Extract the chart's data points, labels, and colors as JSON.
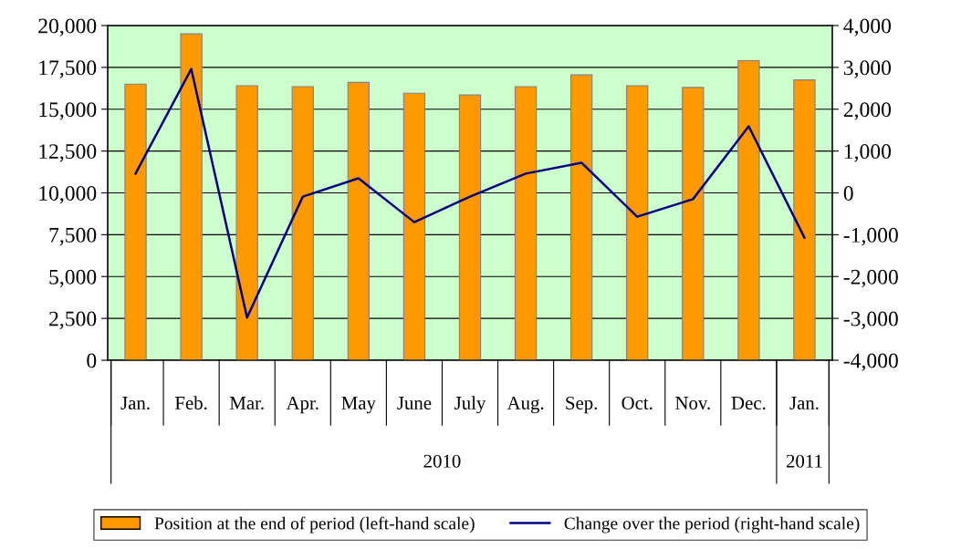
{
  "chart_data": {
    "type": "bar",
    "categories": [
      "Jan.",
      "Feb.",
      "Mar.",
      "Apr.",
      "May",
      "June",
      "July",
      "Aug.",
      "Sep.",
      "Oct.",
      "Nov.",
      "Dec.",
      "Jan."
    ],
    "series": [
      {
        "name": "Position at the end of period (left-hand scale)",
        "color": "#ff9900",
        "values": [
          16500,
          19500,
          16400,
          16350,
          16600,
          15950,
          15850,
          16350,
          17050,
          16400,
          16300,
          17900,
          16750
        ]
      },
      {
        "name": "Change over the period (right-hand scale)",
        "type": "line",
        "axis": "y2",
        "color": "#000080",
        "values": [
          460,
          2960,
          -2980,
          -90,
          350,
          -700,
          -90,
          460,
          720,
          -570,
          -150,
          1590,
          -1070
        ]
      }
    ],
    "ylim": [
      0,
      20000
    ],
    "yticks": [
      {
        "value": 0,
        "label": "0"
      },
      {
        "value": 2500,
        "label": "2,500"
      },
      {
        "value": 5000,
        "label": "5,000"
      },
      {
        "value": 7500,
        "label": "7,500"
      },
      {
        "value": 10000,
        "label": "10,000"
      },
      {
        "value": 12500,
        "label": "12,500"
      },
      {
        "value": 15000,
        "label": "15,000"
      },
      {
        "value": 17500,
        "label": "17,500"
      },
      {
        "value": 20000,
        "label": "20,000"
      }
    ],
    "y2lim": [
      -4000,
      4000
    ],
    "y2ticks": [
      {
        "value": -4000,
        "label": "-4,000"
      },
      {
        "value": -3000,
        "label": "-3,000"
      },
      {
        "value": -2000,
        "label": "-2,000"
      },
      {
        "value": -1000,
        "label": "-1,000"
      },
      {
        "value": 0,
        "label": "0"
      },
      {
        "value": 1000,
        "label": "1,000"
      },
      {
        "value": 2000,
        "label": "2,000"
      },
      {
        "value": 3000,
        "label": "3,000"
      },
      {
        "value": 4000,
        "label": "4,000"
      }
    ],
    "annotations": [
      "2010",
      "2011"
    ],
    "grid": "y",
    "legend": "bottom",
    "marker": "none",
    "line_style": "solid"
  }
}
